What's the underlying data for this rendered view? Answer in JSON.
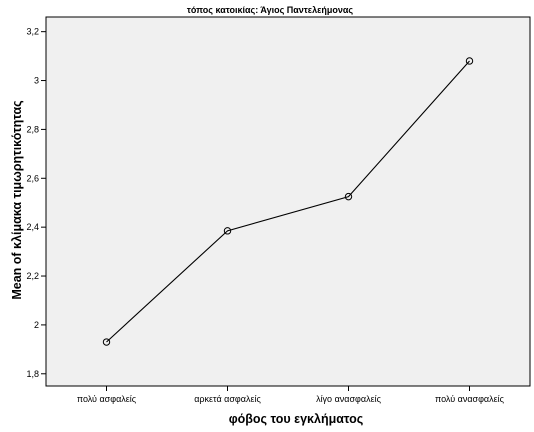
{
  "chart_data": {
    "type": "line",
    "title": "τόπος κατοικίας: Άγιος Παντελεήμονας",
    "xlabel": "φόβος του εγκλήματος",
    "ylabel": "Mean of κλίμακα τιμωρητικότητας",
    "categories": [
      "πολύ ασφαλείς",
      "αρκετά ασφαλείς",
      "λίγο ανασφαλείς",
      "πολύ ανασφαλείς"
    ],
    "series": [
      {
        "values": [
          1.93,
          2.385,
          2.525,
          3.08
        ]
      }
    ],
    "ylim": [
      1.75,
      3.26
    ],
    "yticks": [
      1.8,
      2,
      2.2,
      2.4,
      2.6,
      2.8,
      3,
      3.2
    ],
    "ytick_labels": [
      "1,8",
      "2",
      "2,2",
      "2,4",
      "2,6",
      "2,8",
      "3",
      "3,2"
    ],
    "grid": false,
    "legend": "none",
    "colors": {
      "plot_background": "#f0f0f0",
      "line": "#000000",
      "marker": "#000000"
    }
  }
}
